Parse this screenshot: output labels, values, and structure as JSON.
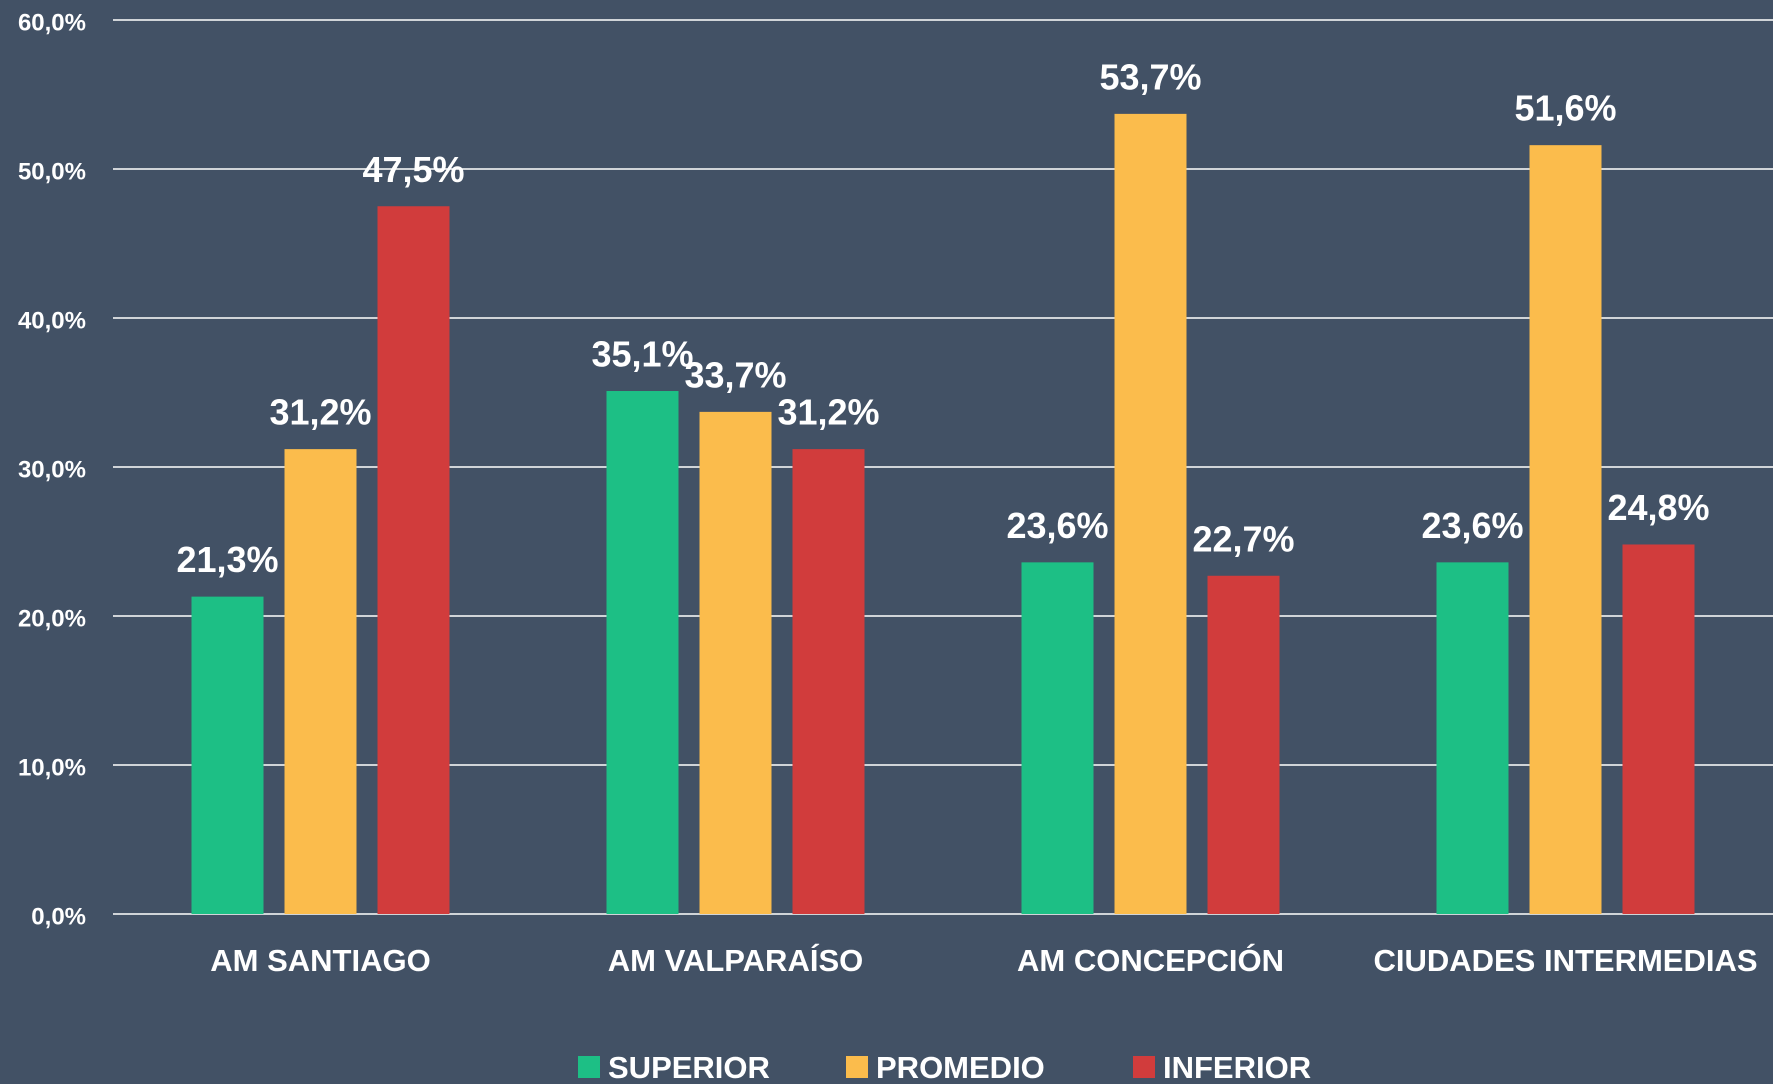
{
  "chart_data": {
    "type": "bar",
    "categories": [
      "AM SANTIAGO",
      "AM VALPARAÍSO",
      "AM CONCEPCIÓN",
      "CIUDADES INTERMEDIAS"
    ],
    "series": [
      {
        "name": "SUPERIOR",
        "color": "#1dbf85",
        "values": [
          21.3,
          35.1,
          23.6,
          23.6
        ],
        "value_labels": [
          "21,3%",
          "35,1%",
          "23,6%",
          "23,6%"
        ]
      },
      {
        "name": "PROMEDIO",
        "color": "#fbbc4c",
        "values": [
          31.2,
          33.7,
          53.7,
          51.6
        ],
        "value_labels": [
          "31,2%",
          "33,7%",
          "53,7%",
          "51,6%"
        ]
      },
      {
        "name": "INFERIOR",
        "color": "#d13c3c",
        "values": [
          47.5,
          31.2,
          22.7,
          24.8
        ],
        "value_labels": [
          "47,5%",
          "31,2%",
          "22,7%",
          "24,8%"
        ]
      }
    ],
    "ylim": [
      0,
      60
    ],
    "yticks": [
      {
        "value": 0,
        "label": "0,0%"
      },
      {
        "value": 10,
        "label": "10,0%"
      },
      {
        "value": 20,
        "label": "20,0%"
      },
      {
        "value": 30,
        "label": "30,0%"
      },
      {
        "value": 40,
        "label": "40,0%"
      },
      {
        "value": 50,
        "label": "50,0%"
      },
      {
        "value": 60,
        "label": "60,0%"
      }
    ],
    "grid": true,
    "legend": "bottom"
  }
}
